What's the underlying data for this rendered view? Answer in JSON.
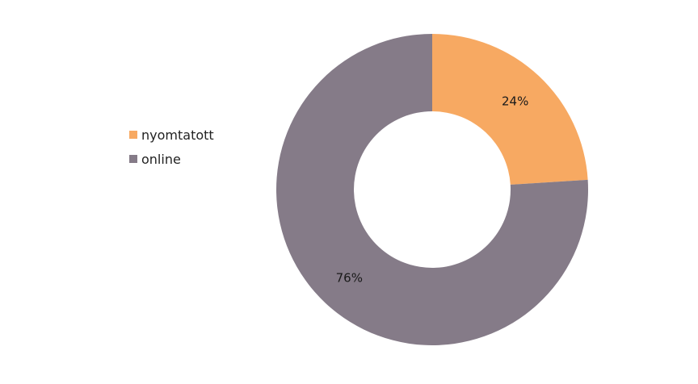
{
  "chart_data": {
    "type": "pie",
    "style": "donut",
    "legend_position": "left",
    "slices": [
      {
        "name": "nyomtatott",
        "value": 24,
        "label": "24%",
        "color": "#F7A962"
      },
      {
        "name": "online",
        "value": 76,
        "label": "76%",
        "color": "#857B88"
      }
    ]
  }
}
